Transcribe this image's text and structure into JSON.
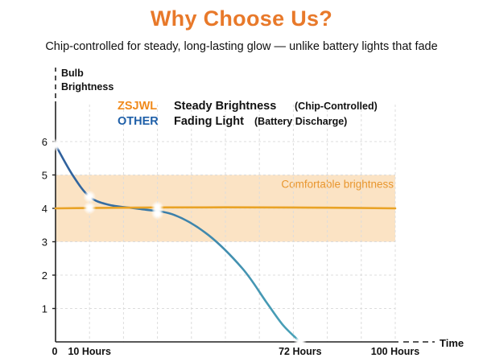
{
  "header": {
    "title": "Why Choose Us?",
    "subtitle": "Chip-controlled for steady, long-lasting glow — unlike battery lights that fade"
  },
  "colors": {
    "title": "#e8792a",
    "brand": "#f08a1c",
    "other": "#1e5fa8",
    "steady_line": "#e9a326",
    "fading_line_start": "#2f5f9c",
    "fading_line_end": "#4aa3b8",
    "band_fill": "#fbe3c4",
    "band_label": "#e8962e",
    "axis": "#222222",
    "grid": "#dcdcdc"
  },
  "chart_data": {
    "type": "line",
    "xlabel": "Time",
    "ylabel_line1": "Bulb",
    "ylabel_line2": "Brightness",
    "xlim": [
      0,
      100
    ],
    "ylim": [
      0,
      7
    ],
    "y_ticks": [
      1,
      2,
      3,
      4,
      5,
      6
    ],
    "x_ticks": [
      {
        "value": 0,
        "label": "0"
      },
      {
        "value": 10,
        "label": "10 Hours"
      },
      {
        "value": 72,
        "label": "72 Hours"
      },
      {
        "value": 100,
        "label": "100 Hours"
      }
    ],
    "grid": true,
    "legend": [
      {
        "key": "ZSJWL",
        "label": "Steady Brightness",
        "note": "(Chip-Controlled)"
      },
      {
        "key": "OTHER",
        "label": "Fading Light",
        "note": "(Battery Discharge)"
      }
    ],
    "band": {
      "from": 3,
      "to": 5,
      "label": "Comfortable brightness"
    },
    "series": [
      {
        "name": "ZSJWL",
        "x": [
          0,
          10,
          20,
          40,
          60,
          80,
          100
        ],
        "y": [
          4.0,
          4.01,
          4.02,
          4.03,
          4.03,
          4.02,
          4.0
        ]
      },
      {
        "name": "OTHER",
        "x": [
          0,
          5,
          10,
          16,
          25,
          35,
          45,
          55,
          62,
          67,
          72
        ],
        "y": [
          5.9,
          5.0,
          4.35,
          4.1,
          3.98,
          3.8,
          3.2,
          2.2,
          1.2,
          0.5,
          0
        ]
      }
    ],
    "markers": [
      {
        "series": "OTHER",
        "x": 10,
        "y": 4.35
      },
      {
        "series": "ZSJWL",
        "x": 10,
        "y": 4.01
      },
      {
        "series": "ZSJWL",
        "x": 30,
        "y": 4.03
      },
      {
        "series": "OTHER",
        "x": 30,
        "y": 3.85
      },
      {
        "series": "OTHER",
        "x": 0,
        "y": 5.9
      },
      {
        "series": "OTHER",
        "x": 72,
        "y": 0
      }
    ]
  }
}
